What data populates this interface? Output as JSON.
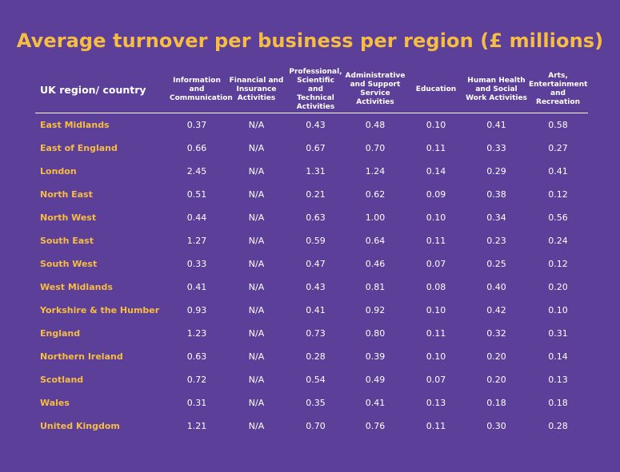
{
  "title": "Average turnover per business per region (£ millions)",
  "colors": {
    "background": "#5b3f98",
    "accent": "#f7bd42",
    "text": "#ffffff"
  },
  "chart_data": {
    "type": "table",
    "title": "Average turnover per business per region (£ millions)",
    "columns": [
      "UK region/ country",
      "Information and Communication",
      "Financial and Insurance Activities",
      "Professional, Scientific and Technical Activities",
      "Administrative and Support Service Activities",
      "Education",
      "Human Health and Social Work Activities",
      "Arts, Entertainment and Recreation"
    ],
    "rows": [
      [
        "East Midlands",
        "0.37",
        "N/A",
        "0.43",
        "0.48",
        "0.10",
        "0.41",
        "0.58"
      ],
      [
        "East of England",
        "0.66",
        "N/A",
        "0.67",
        "0.70",
        "0.11",
        "0.33",
        "0.27"
      ],
      [
        "London",
        "2.45",
        "N/A",
        "1.31",
        "1.24",
        "0.14",
        "0.29",
        "0.41"
      ],
      [
        "North East",
        "0.51",
        "N/A",
        "0.21",
        "0.62",
        "0.09",
        "0.38",
        "0.12"
      ],
      [
        "North West",
        "0.44",
        "N/A",
        "0.63",
        "1.00",
        "0.10",
        "0.34",
        "0.56"
      ],
      [
        "South East",
        "1.27",
        "N/A",
        "0.59",
        "0.64",
        "0.11",
        "0.23",
        "0.24"
      ],
      [
        "South West",
        "0.33",
        "N/A",
        "0.47",
        "0.46",
        "0.07",
        "0.25",
        "0.12"
      ],
      [
        "West Midlands",
        "0.41",
        "N/A",
        "0.43",
        "0.81",
        "0.08",
        "0.40",
        "0.20"
      ],
      [
        "Yorkshire & the Humber",
        "0.93",
        "N/A",
        "0.41",
        "0.92",
        "0.10",
        "0.42",
        "0.10"
      ],
      [
        "England",
        "1.23",
        "N/A",
        "0.73",
        "0.80",
        "0.11",
        "0.32",
        "0.31"
      ],
      [
        "Northern Ireland",
        "0.63",
        "N/A",
        "0.28",
        "0.39",
        "0.10",
        "0.20",
        "0.14"
      ],
      [
        "Scotland",
        "0.72",
        "N/A",
        "0.54",
        "0.49",
        "0.07",
        "0.20",
        "0.13"
      ],
      [
        "Wales",
        "0.31",
        "N/A",
        "0.35",
        "0.41",
        "0.13",
        "0.18",
        "0.18"
      ],
      [
        "United Kingdom",
        "1.21",
        "N/A",
        "0.70",
        "0.76",
        "0.11",
        "0.30",
        "0.28"
      ]
    ]
  }
}
